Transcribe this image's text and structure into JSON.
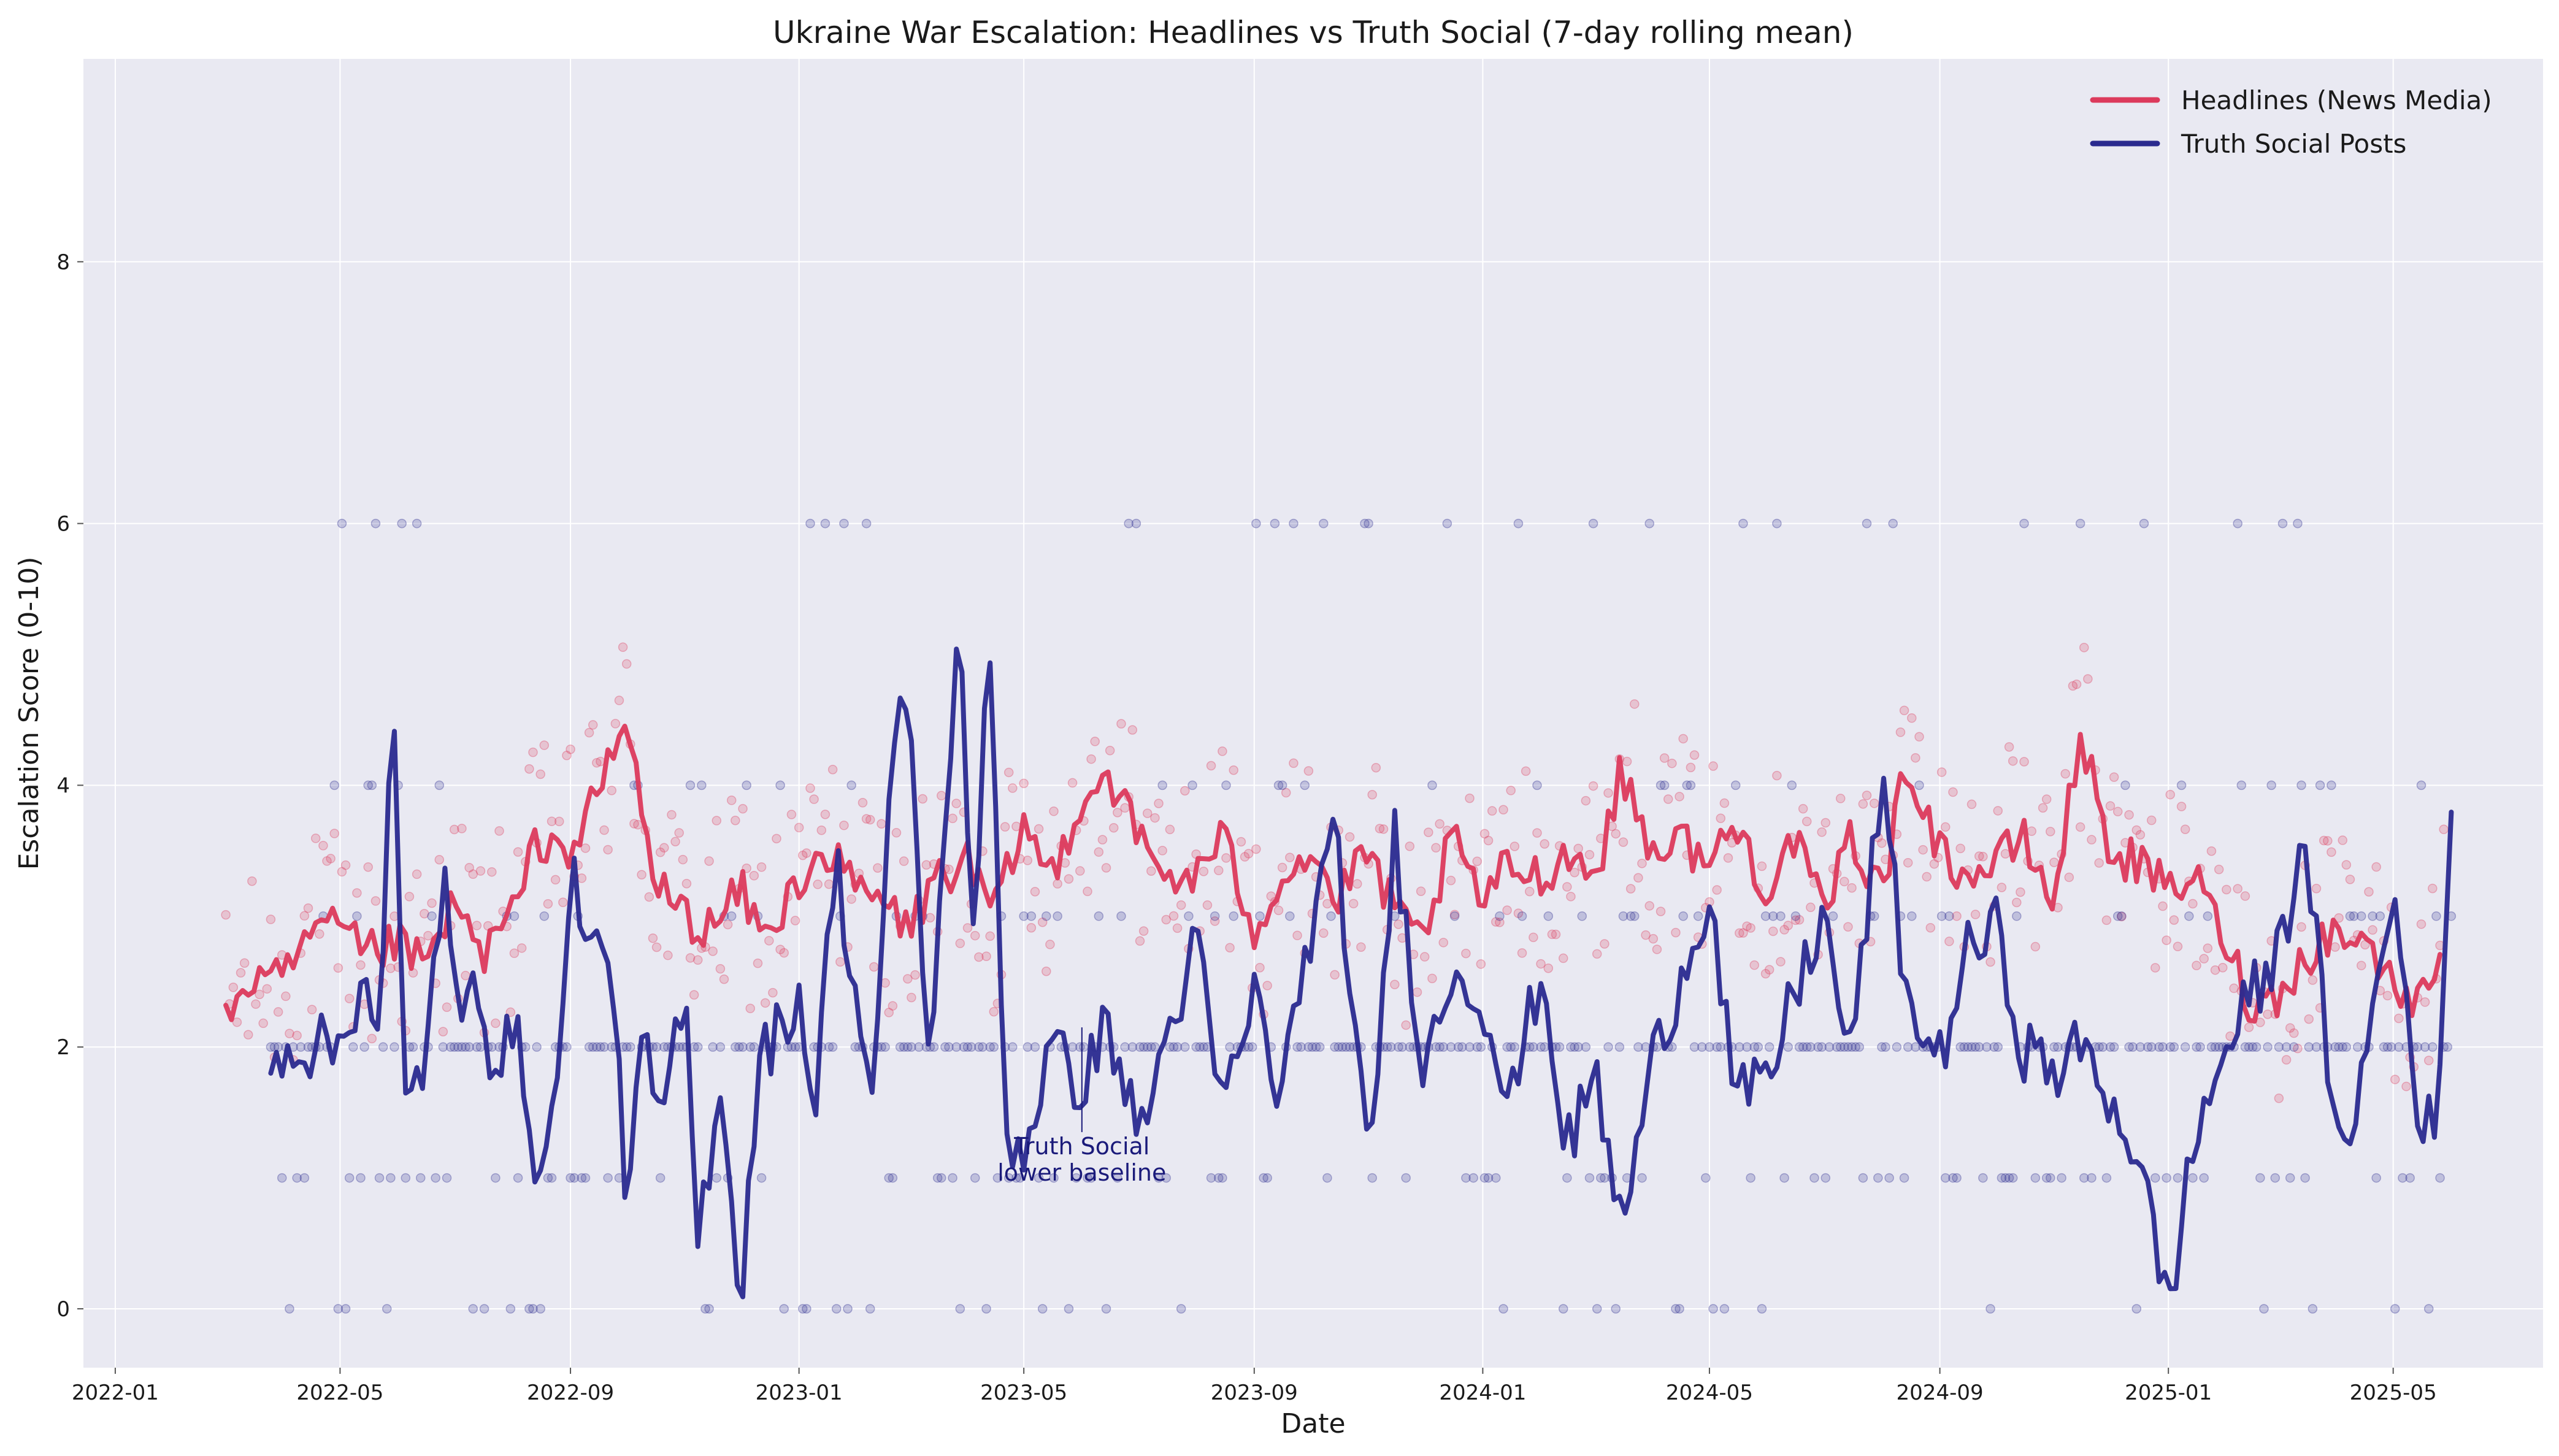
{
  "chart_data": {
    "type": "line",
    "title": "Ukraine War Escalation: Headlines vs Truth Social (7-day rolling mean)",
    "xlabel": "Date",
    "ylabel": "Escalation Score (0-10)",
    "x_range": [
      "2021-12-15",
      "2025-07-20"
    ],
    "ylim": [
      -0.45,
      9.55
    ],
    "x_ticks": [
      "2022-01",
      "2022-05",
      "2022-09",
      "2023-01",
      "2023-05",
      "2023-09",
      "2024-01",
      "2024-05",
      "2024-09",
      "2025-01",
      "2025-05"
    ],
    "y_ticks": [
      0,
      2,
      4,
      6,
      8
    ],
    "grid": true,
    "legend_position": "top-right",
    "colors": {
      "headlines": "#dc3a5c",
      "truth": "#2a2a8f",
      "background": "#e9e9f2"
    },
    "series": [
      {
        "name": "Headlines (News Media)",
        "color": "#dc3a5c",
        "points": [
          [
            "2022-03-01",
            2.3
          ],
          [
            "2022-03-15",
            2.5
          ],
          [
            "2022-04-01",
            2.5
          ],
          [
            "2022-04-15",
            2.85
          ],
          [
            "2022-05-01",
            2.9
          ],
          [
            "2022-05-15",
            2.7
          ],
          [
            "2022-06-01",
            2.8
          ],
          [
            "2022-06-15",
            2.6
          ],
          [
            "2022-07-01",
            3.1
          ],
          [
            "2022-07-15",
            2.7
          ],
          [
            "2022-08-01",
            3.0
          ],
          [
            "2022-08-15",
            3.6
          ],
          [
            "2022-09-01",
            3.5
          ],
          [
            "2022-09-15",
            3.9
          ],
          [
            "2022-10-01",
            4.5
          ],
          [
            "2022-10-15",
            3.3
          ],
          [
            "2022-11-01",
            3.0
          ],
          [
            "2022-11-15",
            2.9
          ],
          [
            "2022-12-01",
            3.2
          ],
          [
            "2022-12-15",
            2.8
          ],
          [
            "2023-01-01",
            3.3
          ],
          [
            "2023-01-15",
            3.5
          ],
          [
            "2023-02-01",
            3.2
          ],
          [
            "2023-02-15",
            3.1
          ],
          [
            "2023-03-01",
            2.9
          ],
          [
            "2023-03-15",
            3.3
          ],
          [
            "2023-04-01",
            3.4
          ],
          [
            "2023-04-15",
            3.0
          ],
          [
            "2023-05-01",
            3.7
          ],
          [
            "2023-05-15",
            3.3
          ],
          [
            "2023-06-01",
            3.9
          ],
          [
            "2023-06-15",
            4.1
          ],
          [
            "2023-07-01",
            3.6
          ],
          [
            "2023-07-15",
            3.3
          ],
          [
            "2023-08-01",
            3.3
          ],
          [
            "2023-08-15",
            3.6
          ],
          [
            "2023-09-01",
            2.9
          ],
          [
            "2023-09-15",
            3.3
          ],
          [
            "2023-10-01",
            3.5
          ],
          [
            "2023-10-15",
            3.1
          ],
          [
            "2023-11-01",
            3.5
          ],
          [
            "2023-11-15",
            3.0
          ],
          [
            "2023-12-01",
            2.8
          ],
          [
            "2023-12-15",
            3.6
          ],
          [
            "2024-01-01",
            3.1
          ],
          [
            "2024-01-15",
            3.4
          ],
          [
            "2024-02-01",
            3.3
          ],
          [
            "2024-02-15",
            3.5
          ],
          [
            "2024-03-01",
            3.3
          ],
          [
            "2024-03-15",
            4.1
          ],
          [
            "2024-04-01",
            3.5
          ],
          [
            "2024-04-15",
            3.6
          ],
          [
            "2024-05-01",
            3.4
          ],
          [
            "2024-05-15",
            3.7
          ],
          [
            "2024-06-01",
            3.2
          ],
          [
            "2024-06-15",
            3.6
          ],
          [
            "2024-07-01",
            3.0
          ],
          [
            "2024-07-15",
            3.6
          ],
          [
            "2024-08-01",
            3.2
          ],
          [
            "2024-08-15",
            4.2
          ],
          [
            "2024-09-01",
            3.5
          ],
          [
            "2024-09-15",
            3.3
          ],
          [
            "2024-10-01",
            3.4
          ],
          [
            "2024-10-15",
            3.6
          ],
          [
            "2024-11-01",
            3.1
          ],
          [
            "2024-11-15",
            4.4
          ],
          [
            "2024-12-01",
            3.5
          ],
          [
            "2024-12-15",
            3.4
          ],
          [
            "2025-01-01",
            3.2
          ],
          [
            "2025-01-15",
            3.3
          ],
          [
            "2025-02-01",
            2.8
          ],
          [
            "2025-02-15",
            2.3
          ],
          [
            "2025-03-01",
            2.4
          ],
          [
            "2025-03-15",
            2.7
          ],
          [
            "2025-04-01",
            2.9
          ],
          [
            "2025-04-15",
            2.8
          ],
          [
            "2025-05-01",
            2.5
          ],
          [
            "2025-05-15",
            2.3
          ],
          [
            "2025-05-28",
            2.9
          ]
        ]
      },
      {
        "name": "Truth Social Posts",
        "color": "#2a2a8f",
        "points": [
          [
            "2022-03-25",
            2.0
          ],
          [
            "2022-04-30",
            2.0
          ],
          [
            "2022-05-15",
            2.6
          ],
          [
            "2022-05-22",
            1.9
          ],
          [
            "2022-05-29",
            4.7
          ],
          [
            "2022-06-05",
            1.5
          ],
          [
            "2022-06-15",
            1.9
          ],
          [
            "2022-06-25",
            3.3
          ],
          [
            "2022-07-05",
            2.0
          ],
          [
            "2022-07-12",
            2.7
          ],
          [
            "2022-07-20",
            2.0
          ],
          [
            "2022-08-05",
            2.0
          ],
          [
            "2022-08-15",
            1.0
          ],
          [
            "2022-08-25",
            1.6
          ],
          [
            "2022-09-01",
            3.5
          ],
          [
            "2022-09-10",
            2.6
          ],
          [
            "2022-09-20",
            3.0
          ],
          [
            "2022-10-01",
            0.9
          ],
          [
            "2022-10-10",
            2.0
          ],
          [
            "2022-10-20",
            1.4
          ],
          [
            "2022-11-01",
            2.4
          ],
          [
            "2022-11-08",
            0.5
          ],
          [
            "2022-11-20",
            1.8
          ],
          [
            "2022-12-01",
            0.0
          ],
          [
            "2022-12-10",
            1.9
          ],
          [
            "2022-12-20",
            2.1
          ],
          [
            "2023-01-01",
            2.4
          ],
          [
            "2023-01-10",
            1.5
          ],
          [
            "2023-01-20",
            3.5
          ],
          [
            "2023-02-01",
            2.3
          ],
          [
            "2023-02-10",
            1.6
          ],
          [
            "2023-02-20",
            4.2
          ],
          [
            "2023-03-01",
            4.8
          ],
          [
            "2023-03-10",
            1.8
          ],
          [
            "2023-03-20",
            3.5
          ],
          [
            "2023-03-27",
            5.5
          ],
          [
            "2023-04-05",
            2.4
          ],
          [
            "2023-04-12",
            5.4
          ],
          [
            "2023-04-22",
            1.3
          ],
          [
            "2023-05-01",
            1.2
          ],
          [
            "2023-05-15",
            2.0
          ],
          [
            "2023-06-01",
            1.7
          ],
          [
            "2023-06-15",
            2.2
          ],
          [
            "2023-07-01",
            1.3
          ],
          [
            "2023-07-15",
            2.0
          ],
          [
            "2023-08-01",
            2.8
          ],
          [
            "2023-08-15",
            1.5
          ],
          [
            "2023-09-01",
            2.4
          ],
          [
            "2023-09-15",
            1.6
          ],
          [
            "2023-10-01",
            2.9
          ],
          [
            "2023-10-15",
            3.6
          ],
          [
            "2023-11-01",
            1.0
          ],
          [
            "2023-11-15",
            3.6
          ],
          [
            "2023-12-01",
            1.8
          ],
          [
            "2023-12-15",
            2.6
          ],
          [
            "2024-01-01",
            2.4
          ],
          [
            "2024-01-15",
            1.5
          ],
          [
            "2024-02-01",
            2.6
          ],
          [
            "2024-02-15",
            1.2
          ],
          [
            "2024-03-01",
            1.8
          ],
          [
            "2024-03-15",
            0.6
          ],
          [
            "2024-04-01",
            1.9
          ],
          [
            "2024-04-15",
            2.5
          ],
          [
            "2024-05-01",
            3.2
          ],
          [
            "2024-05-15",
            1.6
          ],
          [
            "2024-06-01",
            1.7
          ],
          [
            "2024-06-15",
            2.4
          ],
          [
            "2024-07-01",
            3.0
          ],
          [
            "2024-07-15",
            1.9
          ],
          [
            "2024-08-01",
            4.0
          ],
          [
            "2024-08-15",
            2.3
          ],
          [
            "2024-09-01",
            1.9
          ],
          [
            "2024-09-15",
            2.7
          ],
          [
            "2024-10-01",
            2.9
          ],
          [
            "2024-10-15",
            2.0
          ],
          [
            "2024-11-01",
            1.8
          ],
          [
            "2024-11-15",
            2.0
          ],
          [
            "2024-12-01",
            1.6
          ],
          [
            "2024-12-15",
            1.2
          ],
          [
            "2025-01-01",
            0.0
          ],
          [
            "2025-01-15",
            1.3
          ],
          [
            "2025-02-01",
            2.0
          ],
          [
            "2025-02-15",
            2.4
          ],
          [
            "2025-03-01",
            2.7
          ],
          [
            "2025-03-15",
            3.7
          ],
          [
            "2025-04-01",
            1.1
          ],
          [
            "2025-04-15",
            1.8
          ],
          [
            "2025-05-01",
            3.2
          ],
          [
            "2025-05-15",
            1.5
          ],
          [
            "2025-05-25",
            1.3
          ],
          [
            "2025-06-01",
            4.0
          ]
        ]
      }
    ],
    "annotations": [
      {
        "text_lines": [
          "Truth Social",
          "lower baseline"
        ],
        "at": [
          "2023-06-01",
          2.15
        ]
      }
    ]
  }
}
